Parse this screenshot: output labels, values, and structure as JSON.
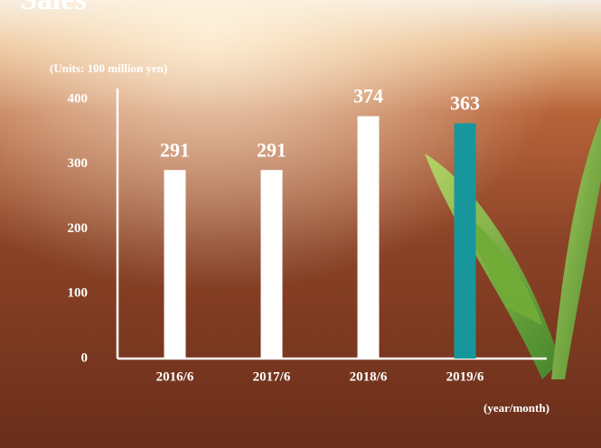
{
  "chart_data": {
    "type": "bar",
    "title": "Sales",
    "y_axis_label": "(Units: 100 million yen)",
    "x_axis_label": "(year/month)",
    "categories": [
      "2016/6",
      "2017/6",
      "2018/6",
      "2019/6"
    ],
    "values": [
      291,
      291,
      374,
      363
    ],
    "colors": [
      "#ffffff",
      "#ffffff",
      "#ffffff",
      "#17979c"
    ],
    "ylim": [
      0,
      400
    ],
    "yticks": [
      0,
      100,
      200,
      300,
      400
    ],
    "grid": false
  }
}
